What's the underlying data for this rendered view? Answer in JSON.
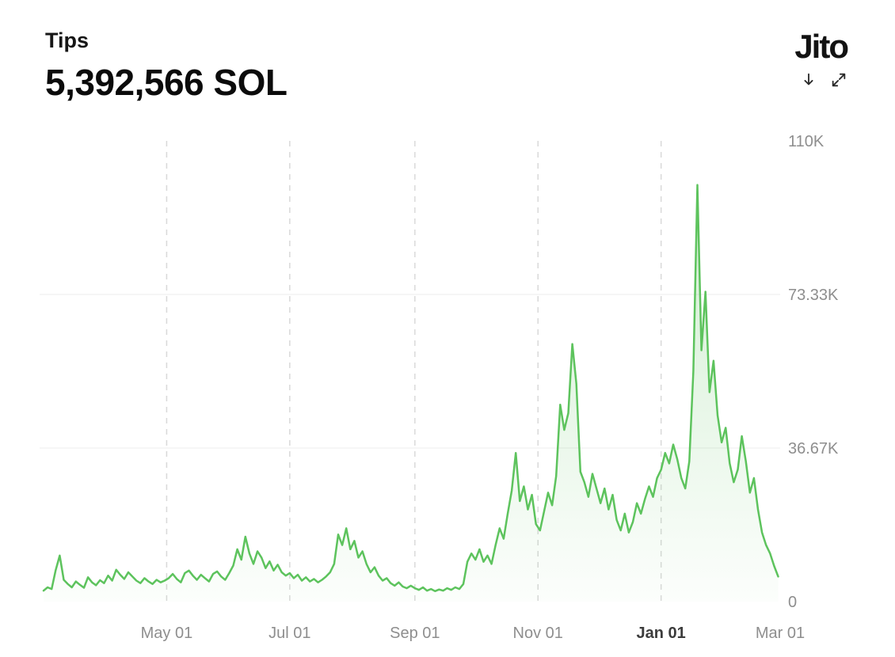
{
  "header": {
    "title": "Tips",
    "total": "5,392,566 SOL",
    "logo": "Jito"
  },
  "icons": {
    "download": "download-icon",
    "expand": "expand-icon"
  },
  "colors": {
    "line": "#5dc35d",
    "fill": "#5dc35d",
    "grid_dashed": "#d9d9d9",
    "grid_solid": "#ececec",
    "axis_label": "#8e8e8e",
    "axis_label_bold": "#3c3c3c"
  },
  "chart_data": {
    "type": "area",
    "title": "Tips",
    "total_label": "5,392,566 SOL",
    "unit": "SOL",
    "x_range": [
      "2024-03-01",
      "2025-03-01"
    ],
    "ylim": [
      0,
      110000
    ],
    "grid": "vertical-dashed, horizontal-solid",
    "legend": "none",
    "y_ticks": [
      {
        "label": "110K",
        "value": 110000,
        "grid": false
      },
      {
        "label": "73.33K",
        "value": 73333,
        "grid": true
      },
      {
        "label": "36.67K",
        "value": 36667,
        "grid": true
      },
      {
        "label": "0",
        "value": 0,
        "grid": false
      }
    ],
    "x_ticks": [
      {
        "label": "May 01",
        "date": "2024-05-01",
        "grid": true,
        "bold": false
      },
      {
        "label": "Jul 01",
        "date": "2024-07-01",
        "grid": true,
        "bold": false
      },
      {
        "label": "Sep 01",
        "date": "2024-09-01",
        "grid": true,
        "bold": false
      },
      {
        "label": "Nov 01",
        "date": "2024-11-01",
        "grid": true,
        "bold": false
      },
      {
        "label": "Jan 01",
        "date": "2025-01-01",
        "grid": true,
        "bold": true
      },
      {
        "label": "Mar 01",
        "date": "2025-03-01",
        "grid": false,
        "bold": false
      }
    ],
    "points": [
      [
        "2024-03-01",
        2600
      ],
      [
        "2024-03-03",
        3400
      ],
      [
        "2024-03-05",
        3000
      ],
      [
        "2024-03-07",
        7500
      ],
      [
        "2024-03-09",
        11000
      ],
      [
        "2024-03-11",
        5200
      ],
      [
        "2024-03-13",
        4200
      ],
      [
        "2024-03-15",
        3400
      ],
      [
        "2024-03-17",
        4800
      ],
      [
        "2024-03-19",
        4000
      ],
      [
        "2024-03-21",
        3300
      ],
      [
        "2024-03-23",
        5800
      ],
      [
        "2024-03-25",
        4600
      ],
      [
        "2024-03-27",
        3900
      ],
      [
        "2024-03-29",
        5100
      ],
      [
        "2024-03-31",
        4400
      ],
      [
        "2024-04-02",
        6200
      ],
      [
        "2024-04-04",
        5000
      ],
      [
        "2024-04-06",
        7600
      ],
      [
        "2024-04-08",
        6400
      ],
      [
        "2024-04-10",
        5400
      ],
      [
        "2024-04-12",
        7000
      ],
      [
        "2024-04-14",
        6000
      ],
      [
        "2024-04-16",
        5000
      ],
      [
        "2024-04-18",
        4400
      ],
      [
        "2024-04-20",
        5600
      ],
      [
        "2024-04-22",
        4800
      ],
      [
        "2024-04-24",
        4200
      ],
      [
        "2024-04-26",
        5200
      ],
      [
        "2024-04-28",
        4600
      ],
      [
        "2024-04-30",
        5000
      ],
      [
        "2024-05-02",
        5600
      ],
      [
        "2024-05-04",
        6600
      ],
      [
        "2024-05-06",
        5400
      ],
      [
        "2024-05-08",
        4600
      ],
      [
        "2024-05-10",
        6800
      ],
      [
        "2024-05-12",
        7400
      ],
      [
        "2024-05-14",
        6200
      ],
      [
        "2024-05-16",
        5200
      ],
      [
        "2024-05-18",
        6400
      ],
      [
        "2024-05-20",
        5600
      ],
      [
        "2024-05-22",
        4800
      ],
      [
        "2024-05-24",
        6600
      ],
      [
        "2024-05-26",
        7200
      ],
      [
        "2024-05-28",
        6000
      ],
      [
        "2024-05-30",
        5200
      ],
      [
        "2024-06-01",
        6800
      ],
      [
        "2024-06-03",
        8600
      ],
      [
        "2024-06-05",
        12500
      ],
      [
        "2024-06-07",
        10000
      ],
      [
        "2024-06-09",
        15500
      ],
      [
        "2024-06-11",
        11500
      ],
      [
        "2024-06-13",
        9000
      ],
      [
        "2024-06-15",
        12000
      ],
      [
        "2024-06-17",
        10500
      ],
      [
        "2024-06-19",
        8000
      ],
      [
        "2024-06-21",
        9600
      ],
      [
        "2024-06-23",
        7400
      ],
      [
        "2024-06-25",
        8800
      ],
      [
        "2024-06-27",
        7000
      ],
      [
        "2024-06-29",
        6200
      ],
      [
        "2024-07-01",
        6800
      ],
      [
        "2024-07-03",
        5600
      ],
      [
        "2024-07-05",
        6400
      ],
      [
        "2024-07-07",
        5000
      ],
      [
        "2024-07-09",
        5800
      ],
      [
        "2024-07-11",
        4800
      ],
      [
        "2024-07-13",
        5400
      ],
      [
        "2024-07-15",
        4600
      ],
      [
        "2024-07-17",
        5200
      ],
      [
        "2024-07-19",
        6000
      ],
      [
        "2024-07-21",
        7000
      ],
      [
        "2024-07-23",
        9000
      ],
      [
        "2024-07-25",
        16000
      ],
      [
        "2024-07-27",
        13500
      ],
      [
        "2024-07-29",
        17500
      ],
      [
        "2024-07-31",
        12500
      ],
      [
        "2024-08-02",
        14500
      ],
      [
        "2024-08-04",
        10500
      ],
      [
        "2024-08-06",
        12000
      ],
      [
        "2024-08-08",
        9000
      ],
      [
        "2024-08-10",
        7000
      ],
      [
        "2024-08-12",
        8200
      ],
      [
        "2024-08-14",
        6200
      ],
      [
        "2024-08-16",
        5000
      ],
      [
        "2024-08-18",
        5600
      ],
      [
        "2024-08-20",
        4400
      ],
      [
        "2024-08-22",
        3800
      ],
      [
        "2024-08-24",
        4600
      ],
      [
        "2024-08-26",
        3600
      ],
      [
        "2024-08-28",
        3200
      ],
      [
        "2024-08-30",
        3800
      ],
      [
        "2024-09-01",
        3200
      ],
      [
        "2024-09-03",
        2800
      ],
      [
        "2024-09-05",
        3400
      ],
      [
        "2024-09-07",
        2600
      ],
      [
        "2024-09-09",
        3000
      ],
      [
        "2024-09-11",
        2500
      ],
      [
        "2024-09-13",
        2900
      ],
      [
        "2024-09-15",
        2600
      ],
      [
        "2024-09-17",
        3200
      ],
      [
        "2024-09-19",
        2800
      ],
      [
        "2024-09-21",
        3400
      ],
      [
        "2024-09-23",
        3000
      ],
      [
        "2024-09-25",
        4200
      ],
      [
        "2024-09-27",
        9500
      ],
      [
        "2024-09-29",
        11500
      ],
      [
        "2024-10-01",
        10000
      ],
      [
        "2024-10-03",
        12500
      ],
      [
        "2024-10-05",
        9500
      ],
      [
        "2024-10-07",
        11000
      ],
      [
        "2024-10-09",
        9000
      ],
      [
        "2024-10-11",
        13500
      ],
      [
        "2024-10-13",
        17500
      ],
      [
        "2024-10-15",
        15000
      ],
      [
        "2024-10-17",
        21000
      ],
      [
        "2024-10-19",
        26500
      ],
      [
        "2024-10-21",
        35500
      ],
      [
        "2024-10-23",
        24000
      ],
      [
        "2024-10-25",
        27500
      ],
      [
        "2024-10-27",
        22000
      ],
      [
        "2024-10-29",
        25500
      ],
      [
        "2024-10-31",
        18500
      ],
      [
        "2024-11-02",
        17000
      ],
      [
        "2024-11-04",
        21500
      ],
      [
        "2024-11-06",
        26000
      ],
      [
        "2024-11-08",
        23000
      ],
      [
        "2024-11-10",
        30000
      ],
      [
        "2024-11-12",
        47000
      ],
      [
        "2024-11-14",
        41000
      ],
      [
        "2024-11-16",
        45000
      ],
      [
        "2024-11-18",
        61500
      ],
      [
        "2024-11-20",
        52000
      ],
      [
        "2024-11-22",
        31000
      ],
      [
        "2024-11-24",
        28500
      ],
      [
        "2024-11-26",
        25000
      ],
      [
        "2024-11-28",
        30500
      ],
      [
        "2024-11-30",
        27000
      ],
      [
        "2024-12-02",
        23500
      ],
      [
        "2024-12-04",
        27000
      ],
      [
        "2024-12-06",
        22000
      ],
      [
        "2024-12-08",
        25500
      ],
      [
        "2024-12-10",
        19500
      ],
      [
        "2024-12-12",
        17000
      ],
      [
        "2024-12-14",
        21000
      ],
      [
        "2024-12-16",
        16500
      ],
      [
        "2024-12-18",
        19000
      ],
      [
        "2024-12-20",
        23500
      ],
      [
        "2024-12-22",
        21000
      ],
      [
        "2024-12-24",
        24500
      ],
      [
        "2024-12-26",
        27500
      ],
      [
        "2024-12-28",
        25000
      ],
      [
        "2024-12-30",
        29500
      ],
      [
        "2025-01-01",
        31500
      ],
      [
        "2025-01-03",
        35500
      ],
      [
        "2025-01-05",
        33000
      ],
      [
        "2025-01-07",
        37500
      ],
      [
        "2025-01-09",
        34000
      ],
      [
        "2025-01-11",
        29500
      ],
      [
        "2025-01-13",
        27000
      ],
      [
        "2025-01-15",
        33500
      ],
      [
        "2025-01-17",
        55000
      ],
      [
        "2025-01-19",
        99500
      ],
      [
        "2025-01-21",
        60000
      ],
      [
        "2025-01-23",
        74000
      ],
      [
        "2025-01-25",
        50000
      ],
      [
        "2025-01-27",
        57500
      ],
      [
        "2025-01-29",
        44500
      ],
      [
        "2025-01-31",
        38000
      ],
      [
        "2025-02-02",
        41500
      ],
      [
        "2025-02-04",
        33000
      ],
      [
        "2025-02-06",
        28500
      ],
      [
        "2025-02-08",
        31500
      ],
      [
        "2025-02-10",
        39500
      ],
      [
        "2025-02-12",
        33500
      ],
      [
        "2025-02-14",
        26000
      ],
      [
        "2025-02-16",
        29500
      ],
      [
        "2025-02-18",
        22000
      ],
      [
        "2025-02-20",
        16500
      ],
      [
        "2025-02-22",
        13500
      ],
      [
        "2025-02-24",
        11500
      ],
      [
        "2025-02-26",
        8500
      ],
      [
        "2025-02-28",
        6000
      ]
    ]
  }
}
